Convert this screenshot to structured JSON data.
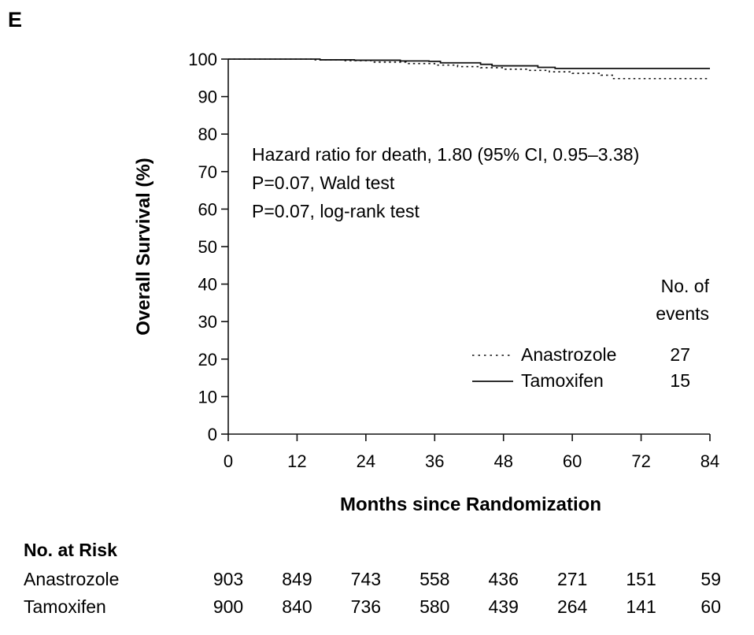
{
  "panel_label": "E",
  "chart_data": {
    "type": "line",
    "title": "",
    "xlabel": "Months since Randomization",
    "ylabel": "Overall Survival (%)",
    "xlim": [
      0,
      84
    ],
    "ylim": [
      0,
      100
    ],
    "x_ticks": [
      0,
      12,
      24,
      36,
      48,
      60,
      72,
      84
    ],
    "y_ticks": [
      0,
      10,
      20,
      30,
      40,
      50,
      60,
      70,
      80,
      90,
      100
    ],
    "grid": false,
    "series": [
      {
        "name": "Anastrozole",
        "style": "dotted",
        "events": "27",
        "x": [
          0,
          15,
          20,
          25,
          31,
          36,
          40,
          44,
          48,
          52,
          56,
          60,
          65,
          67,
          84
        ],
        "y": [
          100,
          99.8,
          99.6,
          99.2,
          98.8,
          98.4,
          98.0,
          97.7,
          97.3,
          97.0,
          96.6,
          96.2,
          95.7,
          94.8,
          94.8
        ]
      },
      {
        "name": "Tamoxifen",
        "style": "solid",
        "events": "15",
        "x": [
          0,
          12,
          16,
          22,
          30,
          35,
          37,
          44,
          46,
          54,
          57,
          84
        ],
        "y": [
          100,
          100,
          99.8,
          99.7,
          99.5,
          99.4,
          99.0,
          98.6,
          98.2,
          97.8,
          97.5,
          97.5
        ]
      }
    ],
    "annotations": [
      "Hazard ratio for death, 1.80 (95% CI, 0.95–3.38)",
      "P=0.07, Wald test",
      "P=0.07, log-rank test"
    ],
    "legend": {
      "placement": "bottom-right",
      "header_line1": "No. of",
      "header_line2": "events"
    }
  },
  "risk_table": {
    "title": "No. at Risk",
    "rows": [
      {
        "label": "Anastrozole",
        "values": [
          "903",
          "849",
          "743",
          "558",
          "436",
          "271",
          "151",
          "59"
        ]
      },
      {
        "label": "Tamoxifen",
        "values": [
          "900",
          "840",
          "736",
          "580",
          "439",
          "264",
          "141",
          "60"
        ]
      }
    ]
  }
}
